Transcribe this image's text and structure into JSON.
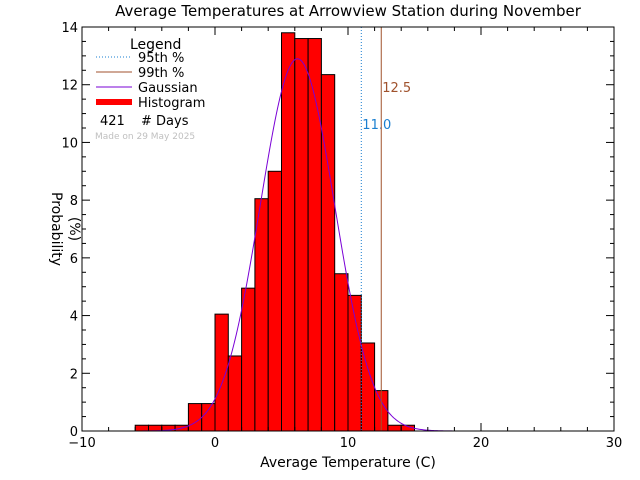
{
  "chart_data": {
    "type": "bar",
    "title": "Average Temperatures at Arrowview Station during November",
    "xlabel": "Average Temperature (C)",
    "ylabel_line1": "Probability",
    "ylabel_line2": "(%)",
    "xlim": [
      -10,
      30
    ],
    "ylim": [
      0,
      14
    ],
    "xticks": [
      -10,
      0,
      10,
      20,
      30
    ],
    "yticks": [
      0,
      2,
      4,
      6,
      8,
      10,
      12,
      14
    ],
    "grid": false,
    "histogram": {
      "bin_width": 1,
      "bins": [
        {
          "x0": -6,
          "value": 0.2
        },
        {
          "x0": -5,
          "value": 0.2
        },
        {
          "x0": -4,
          "value": 0.2
        },
        {
          "x0": -3,
          "value": 0.2
        },
        {
          "x0": -2,
          "value": 0.95
        },
        {
          "x0": -1,
          "value": 0.95
        },
        {
          "x0": 0,
          "value": 4.05
        },
        {
          "x0": 1,
          "value": 2.6
        },
        {
          "x0": 2,
          "value": 4.95
        },
        {
          "x0": 3,
          "value": 8.05
        },
        {
          "x0": 4,
          "value": 9.0
        },
        {
          "x0": 5,
          "value": 13.8
        },
        {
          "x0": 6,
          "value": 13.6
        },
        {
          "x0": 7,
          "value": 13.6
        },
        {
          "x0": 8,
          "value": 12.35
        },
        {
          "x0": 9,
          "value": 5.45
        },
        {
          "x0": 10,
          "value": 4.7
        },
        {
          "x0": 11,
          "value": 3.05
        },
        {
          "x0": 12,
          "value": 1.4
        },
        {
          "x0": 13,
          "value": 0.2
        },
        {
          "x0": 14,
          "value": 0.2
        }
      ]
    },
    "gaussian": {
      "mean": 6.2,
      "sigma": 2.8,
      "peak": 12.9
    },
    "percentiles": [
      {
        "name": "95th %",
        "value": 11.0,
        "label": "11.0",
        "color": "#1a7fd0",
        "style": "dotted"
      },
      {
        "name": "99th %",
        "value": 12.5,
        "label": "12.5",
        "color": "#a0522d",
        "style": "solid"
      }
    ],
    "colors": {
      "histogram": "#ff0000",
      "gaussian": "#7a00d6",
      "outline": "#000000"
    },
    "legend": {
      "title": "Legend",
      "placement": "top-left",
      "entries": [
        {
          "label": "95th %",
          "kind": "dotted",
          "color": "#1a7fd0"
        },
        {
          "label": "99th %",
          "kind": "solid",
          "color": "#a0522d"
        },
        {
          "label": "Gaussian",
          "kind": "solid",
          "color": "#7a00d6"
        },
        {
          "label": "Histogram",
          "kind": "thick",
          "color": "#ff0000"
        }
      ],
      "count": "421",
      "count_label": "# Days"
    },
    "watermark": "Made on 29 May 2025"
  }
}
